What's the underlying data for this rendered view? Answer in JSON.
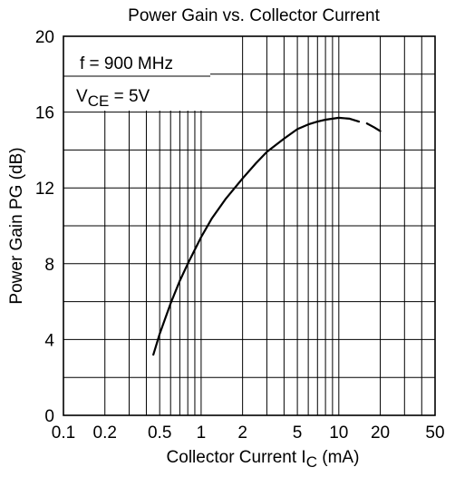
{
  "chart_data": {
    "type": "line",
    "title": "Power Gain vs. Collector Current",
    "xlabel": {
      "main": "Collector Current  I",
      "sub": "C",
      "unit": " (mA)"
    },
    "ylabel": "Power Gain  PG  (dB)",
    "x_scale": "log",
    "xlim": [
      0.1,
      50
    ],
    "ylim": [
      0,
      20
    ],
    "x_ticks": [
      {
        "value": 0.1,
        "label": "0.1"
      },
      {
        "value": 0.2,
        "label": "0.2"
      },
      {
        "value": 0.5,
        "label": "0.5"
      },
      {
        "value": 1,
        "label": "1"
      },
      {
        "value": 2,
        "label": "2"
      },
      {
        "value": 5,
        "label": "5"
      },
      {
        "value": 10,
        "label": "10"
      },
      {
        "value": 20,
        "label": "20"
      },
      {
        "value": 50,
        "label": "50"
      }
    ],
    "y_ticks": [
      0,
      4,
      8,
      12,
      16,
      20
    ],
    "grid": true,
    "annotations": [
      {
        "main": "f = 900 MHz",
        "sub": ""
      },
      {
        "main": "V",
        "sub": "CE",
        "rest": " = 5V"
      }
    ],
    "series": [
      {
        "x": [
          0.45,
          0.5,
          0.6,
          0.7,
          0.8,
          1.0,
          1.2,
          1.5,
          2.0,
          2.5,
          3.0,
          4.0,
          5.0,
          6.0,
          7.0,
          8.0,
          10.0,
          12.0,
          14.0
        ],
        "y": [
          3.2,
          4.3,
          5.9,
          7.1,
          8.0,
          9.4,
          10.4,
          11.4,
          12.5,
          13.3,
          13.9,
          14.6,
          15.1,
          15.35,
          15.5,
          15.6,
          15.7,
          15.65,
          15.5
        ]
      },
      {
        "x": [
          16.0,
          18.0,
          20.0
        ],
        "y": [
          15.4,
          15.2,
          15.0
        ]
      }
    ]
  }
}
